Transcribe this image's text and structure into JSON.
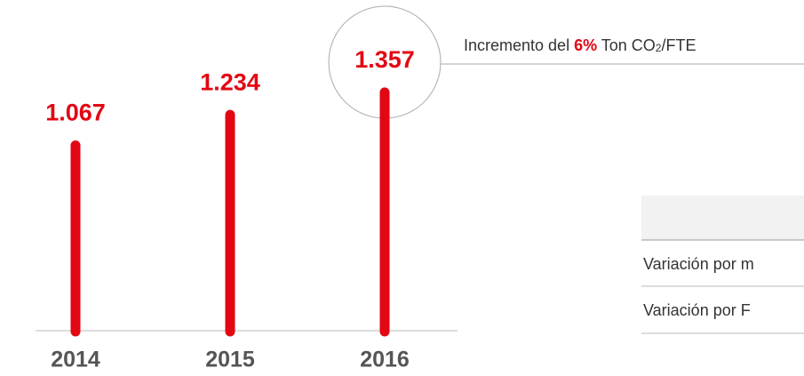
{
  "chart_data": {
    "type": "bar",
    "categories": [
      "2014",
      "2015",
      "2016"
    ],
    "values": [
      1.067,
      1.234,
      1.357
    ],
    "color": "#e30613",
    "ylim": [
      0,
      1.4
    ],
    "annotation": {
      "parts": [
        "Incremento del ",
        "6%",
        " Ton CO",
        "2",
        "/FTE"
      ]
    }
  },
  "table": {
    "rows": [
      [
        "Variación por m"
      ],
      [
        "Variación por F"
      ]
    ]
  }
}
